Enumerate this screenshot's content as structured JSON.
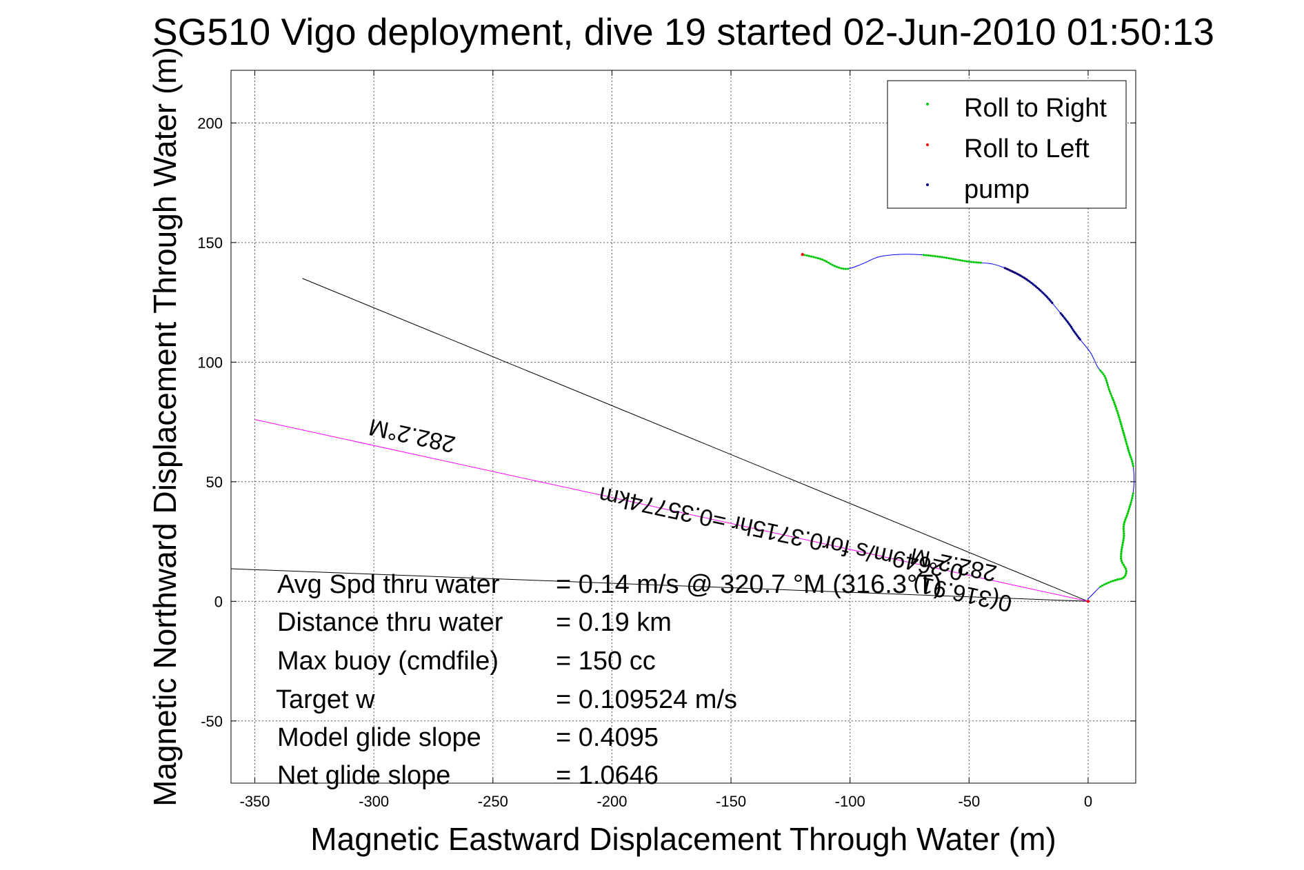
{
  "chart_data": {
    "type": "line",
    "title": "SG510 Vigo deployment, dive 19 started 02-Jun-2010 01:50:13",
    "xlabel": "Magnetic Eastward Displacement Through Water (m)",
    "ylabel": "Magnetic Northward Displacement Through Water (m)",
    "xlim": [
      -360,
      20
    ],
    "ylim": [
      -76,
      222
    ],
    "xticks": [
      -350,
      -300,
      -250,
      -200,
      -150,
      -100,
      -50,
      0
    ],
    "yticks": [
      -50,
      0,
      50,
      100,
      150,
      200
    ],
    "grid": true,
    "legend_position": "top-right",
    "legend": [
      {
        "label": "Roll to Right",
        "color": "#00cc00"
      },
      {
        "label": "Roll to Left",
        "color": "#ff0000"
      },
      {
        "label": "pump",
        "color": "#000080"
      }
    ],
    "track": {
      "color": "#0000ff",
      "x": [
        -120,
        -112,
        -106,
        -101,
        -95,
        -88,
        -80,
        -72,
        -62,
        -50,
        -40,
        -32,
        -25,
        -18,
        -12,
        -8,
        -6,
        -3,
        1,
        4,
        7,
        9,
        11,
        13,
        15,
        17,
        19,
        19,
        17,
        15,
        15,
        14,
        14,
        16,
        15,
        12,
        9,
        5,
        2,
        0,
        0
      ],
      "y": [
        145,
        143,
        140,
        139,
        141,
        144,
        145,
        145,
        144,
        142,
        141,
        138,
        134,
        128,
        121,
        116,
        113,
        109,
        104,
        98,
        94,
        88,
        83,
        77,
        70,
        63,
        56,
        46,
        38,
        32,
        27,
        21,
        17,
        13,
        10,
        9,
        8,
        6,
        3,
        1,
        0
      ]
    },
    "roll_right_segments": [
      [
        -120,
        -100
      ],
      [
        -70,
        -45
      ],
      [
        5,
        19
      ],
      [
        10,
        18
      ]
    ],
    "roll_left_segments": [
      [
        -35,
        -25
      ]
    ],
    "pump_segments": [
      [
        -35,
        -15
      ],
      [
        -12,
        -3
      ]
    ],
    "reference_lines": [
      {
        "name": "heading-line",
        "color": "#000000",
        "x": [
          0,
          -330
        ],
        "y": [
          0,
          135
        ]
      },
      {
        "name": "current-line",
        "color": "#000000",
        "x": [
          0,
          -370
        ],
        "y": [
          0,
          14
        ]
      },
      {
        "name": "average-direction-line",
        "color": "#ff00ff",
        "x": [
          0,
          -350
        ],
        "y": [
          0,
          76
        ]
      }
    ],
    "annotations": {
      "heading_far": "282.2°M",
      "heading_near": "282.2°M",
      "current": "0.2649m/s for0.3715hr =0.35774km",
      "current_tail": "0(316.91)"
    },
    "stats": [
      {
        "label": "Avg Spd thru water",
        "value": "=  0.14 m/s @ 320.7 °M (316.3°T)"
      },
      {
        "label": "Distance thru water",
        "value": "=  0.19 km"
      },
      {
        "label": "Max buoy (cmdfile)",
        "value": "= 150 cc"
      },
      {
        "label": "Target w",
        "value": "= 0.109524 m/s"
      },
      {
        "label": "Model glide slope",
        "value": "= 0.4095"
      },
      {
        "label": "Net glide slope",
        "value": "= 1.0646"
      }
    ]
  }
}
